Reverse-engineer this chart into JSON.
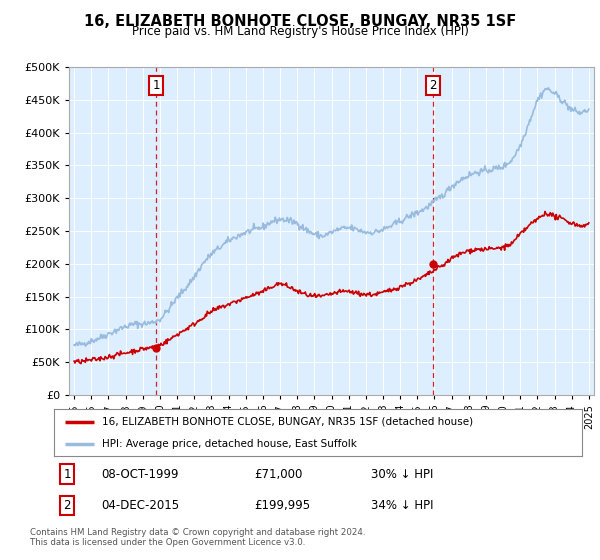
{
  "title": "16, ELIZABETH BONHOTE CLOSE, BUNGAY, NR35 1SF",
  "subtitle": "Price paid vs. HM Land Registry's House Price Index (HPI)",
  "legend_line1": "16, ELIZABETH BONHOTE CLOSE, BUNGAY, NR35 1SF (detached house)",
  "legend_line2": "HPI: Average price, detached house, East Suffolk",
  "sale1_date": "08-OCT-1999",
  "sale1_price": "£71,000",
  "sale1_hpi": "30% ↓ HPI",
  "sale1_year": 1999.77,
  "sale1_value": 71000,
  "sale2_date": "04-DEC-2015",
  "sale2_price": "£199,995",
  "sale2_hpi": "34% ↓ HPI",
  "sale2_year": 2015.92,
  "sale2_value": 199995,
  "footer": "Contains HM Land Registry data © Crown copyright and database right 2024.\nThis data is licensed under the Open Government Licence v3.0.",
  "hpi_color": "#99bbdd",
  "price_color": "#cc0000",
  "vline_color": "#cc0000",
  "background_color": "#ddeeff",
  "ylim": [
    0,
    500000
  ],
  "xlim_start": 1994.7,
  "xlim_end": 2025.3,
  "hpi_years": [
    1995,
    1995.5,
    1996,
    1996.5,
    1997,
    1997.5,
    1998,
    1998.5,
    1999,
    1999.5,
    2000,
    2000.5,
    2001,
    2001.5,
    2002,
    2002.5,
    2003,
    2003.5,
    2004,
    2004.5,
    2005,
    2005.5,
    2006,
    2006.5,
    2007,
    2007.5,
    2008,
    2008.5,
    2009,
    2009.5,
    2010,
    2010.5,
    2011,
    2011.5,
    2012,
    2012.5,
    2013,
    2013.5,
    2014,
    2014.5,
    2015,
    2015.5,
    2016,
    2016.5,
    2017,
    2017.5,
    2018,
    2018.5,
    2019,
    2019.5,
    2020,
    2020.5,
    2021,
    2021.5,
    2022,
    2022.5,
    2023,
    2023.5,
    2024,
    2024.5,
    2025
  ],
  "hpi_vals": [
    75000,
    78000,
    82000,
    87000,
    93000,
    99000,
    104000,
    108000,
    108000,
    110000,
    115000,
    130000,
    148000,
    163000,
    180000,
    200000,
    215000,
    225000,
    235000,
    242000,
    248000,
    252000,
    256000,
    264000,
    268000,
    266000,
    262000,
    252000,
    245000,
    242000,
    248000,
    253000,
    255000,
    252000,
    248000,
    248000,
    252000,
    258000,
    265000,
    272000,
    278000,
    285000,
    295000,
    305000,
    318000,
    328000,
    335000,
    340000,
    342000,
    345000,
    348000,
    358000,
    380000,
    415000,
    450000,
    468000,
    460000,
    448000,
    435000,
    430000,
    435000
  ],
  "price_years": [
    1995,
    1995.5,
    1996,
    1996.5,
    1997,
    1997.5,
    1998,
    1998.5,
    1999,
    1999.5,
    2000,
    2000.5,
    2001,
    2001.5,
    2002,
    2002.5,
    2003,
    2003.5,
    2004,
    2004.5,
    2005,
    2005.5,
    2006,
    2006.5,
    2007,
    2007.5,
    2008,
    2008.5,
    2009,
    2009.5,
    2010,
    2010.5,
    2011,
    2011.5,
    2012,
    2012.5,
    2013,
    2013.5,
    2014,
    2014.5,
    2015,
    2015.5,
    2016,
    2016.5,
    2017,
    2017.5,
    2018,
    2018.5,
    2019,
    2019.5,
    2020,
    2020.5,
    2021,
    2021.5,
    2022,
    2022.5,
    2023,
    2023.5,
    2024,
    2024.5,
    2025
  ],
  "price_vals": [
    50000,
    51000,
    53000,
    55000,
    58000,
    61000,
    64000,
    67000,
    70000,
    72000,
    76000,
    83000,
    92000,
    100000,
    108000,
    118000,
    127000,
    133000,
    138000,
    143000,
    148000,
    153000,
    157000,
    165000,
    170000,
    165000,
    158000,
    153000,
    150000,
    150000,
    154000,
    157000,
    158000,
    155000,
    153000,
    153000,
    156000,
    160000,
    165000,
    170000,
    175000,
    182000,
    190000,
    198000,
    208000,
    215000,
    220000,
    222000,
    222000,
    223000,
    225000,
    230000,
    245000,
    258000,
    268000,
    278000,
    272000,
    268000,
    262000,
    258000,
    260000
  ]
}
